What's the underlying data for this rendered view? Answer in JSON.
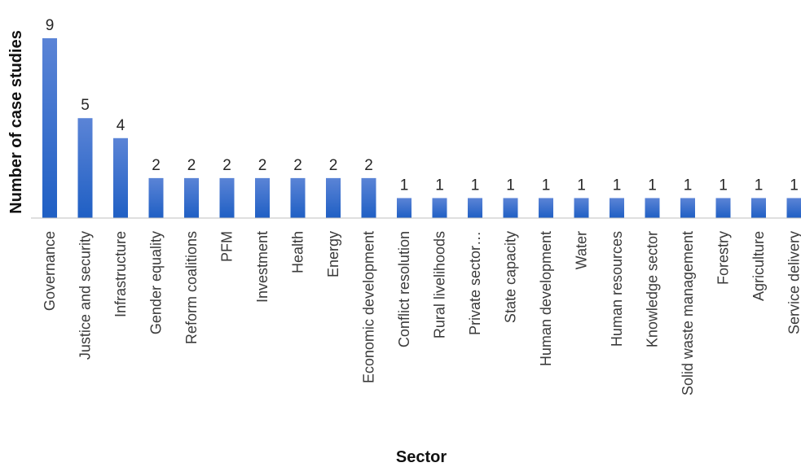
{
  "chart_data": {
    "type": "bar",
    "title": "",
    "xlabel": "Sector",
    "ylabel": "Number of case studies",
    "ylim": [
      0,
      9
    ],
    "grid": false,
    "legend": "none",
    "bar_color_top": "#5b84d6",
    "bar_color_bottom": "#1f5fc4",
    "categories": [
      "Governance",
      "Justice and security",
      "Infrastructure",
      "Gender equality",
      "Reform coalitions",
      "PFM",
      "Investment",
      "Health",
      "Energy",
      "Economic development",
      "Conflict resolution",
      "Rural livelihoods",
      "Private sector…",
      "State capacity",
      "Human development",
      "Water",
      "Human resources",
      "Knowledge sector",
      "Solid waste management",
      "Forestry",
      "Agriculture",
      "Service delivery"
    ],
    "values": [
      9,
      5,
      4,
      2,
      2,
      2,
      2,
      2,
      2,
      2,
      1,
      1,
      1,
      1,
      1,
      1,
      1,
      1,
      1,
      1,
      1,
      1
    ]
  }
}
